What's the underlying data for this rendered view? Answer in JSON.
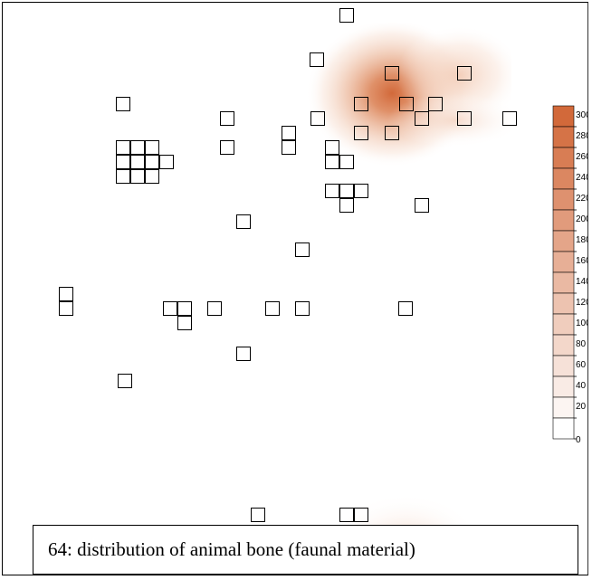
{
  "caption": "64: distribution of animal bone (faunal material)",
  "legend": {
    "labels": [
      "0",
      "20",
      "40",
      "60",
      "80",
      "100",
      "120",
      "140",
      "160",
      "180",
      "200",
      "220",
      "240",
      "260",
      "280",
      "300"
    ],
    "color_low": "#ffffff",
    "color_high": "#d2693a"
  },
  "colors": {
    "square_stroke": "#000000",
    "heat": "#d2693a"
  }
}
